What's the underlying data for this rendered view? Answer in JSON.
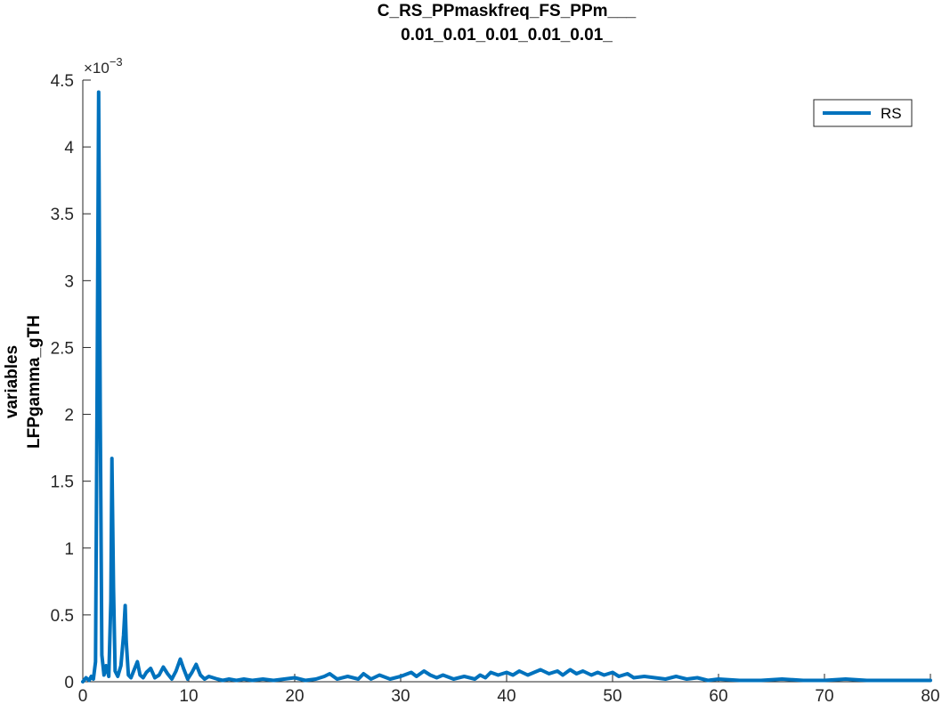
{
  "chart_data": {
    "type": "line",
    "title_lines": [
      "C_RS_PPmaskfreq_FS_PPm___",
      "0.01_0.01_0.01_0.01_0.01_"
    ],
    "ylabel_lines": [
      "variables",
      "LFPgamma_gTH"
    ],
    "xlabel": "",
    "exponent_label": "×10",
    "exponent_power": "−3",
    "xlim": [
      0,
      80
    ],
    "ylim": [
      0,
      4.5
    ],
    "x_ticks": [
      0,
      10,
      20,
      30,
      40,
      50,
      60,
      70,
      80
    ],
    "x_tick_labels": [
      "0",
      "10",
      "20",
      "30",
      "40",
      "50",
      "60",
      "70",
      "80"
    ],
    "y_ticks": [
      0,
      0.5,
      1,
      1.5,
      2,
      2.5,
      3,
      3.5,
      4,
      4.5
    ],
    "y_tick_labels": [
      "0",
      "0.5",
      "1",
      "1.5",
      "2",
      "2.5",
      "3",
      "3.5",
      "4",
      "4.5"
    ],
    "y_scale_note": "values in units of 1e-3",
    "grid": false,
    "legend_position": "top-right",
    "series": [
      {
        "name": "RS",
        "color": "#0072BD",
        "x": [
          0,
          0.3,
          0.6,
          0.8,
          1.0,
          1.2,
          1.35,
          1.5,
          1.65,
          1.8,
          2.0,
          2.2,
          2.45,
          2.65,
          2.75,
          2.9,
          3.05,
          3.3,
          3.6,
          3.85,
          4.0,
          4.1,
          4.3,
          4.55,
          4.85,
          5.15,
          5.4,
          5.7,
          6.0,
          6.4,
          6.8,
          7.2,
          7.6,
          8.0,
          8.4,
          8.8,
          9.2,
          9.5,
          9.9,
          10.3,
          10.7,
          11.1,
          11.5,
          11.9,
          12.3,
          12.7,
          13.2,
          13.8,
          14.5,
          15.2,
          16.0,
          17.0,
          18.0,
          19.0,
          20.0,
          21.0,
          22.0,
          22.8,
          23.3,
          24.0,
          25.0,
          26.0,
          26.5,
          27.2,
          28.0,
          29.0,
          30.0,
          31.0,
          31.5,
          32.2,
          32.8,
          33.4,
          34.0,
          35.0,
          36.0,
          37.0,
          37.5,
          38.0,
          38.5,
          39.2,
          40.0,
          40.6,
          41.2,
          42.0,
          42.6,
          43.2,
          44.0,
          44.8,
          45.3,
          46.0,
          46.6,
          47.2,
          48.0,
          48.6,
          49.2,
          50.0,
          50.6,
          51.4,
          52.0,
          53.0,
          54.0,
          55.0,
          56.0,
          57.0,
          58.0,
          59.0,
          60.0,
          62.0,
          64.0,
          66.0,
          68.0,
          70.0,
          72.0,
          74.0,
          76.0,
          78.0,
          80.0
        ],
        "y": [
          0.0,
          0.03,
          0.01,
          0.04,
          0.02,
          0.15,
          2.2,
          4.41,
          2.0,
          0.2,
          0.05,
          0.12,
          0.04,
          0.6,
          1.67,
          0.7,
          0.08,
          0.04,
          0.12,
          0.35,
          0.57,
          0.3,
          0.05,
          0.03,
          0.09,
          0.15,
          0.05,
          0.03,
          0.07,
          0.1,
          0.03,
          0.05,
          0.11,
          0.06,
          0.02,
          0.08,
          0.17,
          0.1,
          0.02,
          0.07,
          0.13,
          0.05,
          0.02,
          0.04,
          0.03,
          0.02,
          0.01,
          0.02,
          0.01,
          0.02,
          0.01,
          0.02,
          0.01,
          0.02,
          0.03,
          0.01,
          0.02,
          0.04,
          0.06,
          0.02,
          0.04,
          0.02,
          0.06,
          0.02,
          0.05,
          0.02,
          0.04,
          0.07,
          0.04,
          0.08,
          0.05,
          0.03,
          0.05,
          0.02,
          0.04,
          0.02,
          0.05,
          0.03,
          0.07,
          0.05,
          0.07,
          0.05,
          0.08,
          0.05,
          0.07,
          0.09,
          0.06,
          0.08,
          0.05,
          0.09,
          0.06,
          0.08,
          0.05,
          0.07,
          0.05,
          0.07,
          0.04,
          0.06,
          0.03,
          0.04,
          0.03,
          0.02,
          0.04,
          0.02,
          0.03,
          0.01,
          0.02,
          0.01,
          0.01,
          0.02,
          0.01,
          0.01,
          0.02,
          0.01,
          0.01,
          0.01,
          0.01
        ]
      }
    ]
  }
}
